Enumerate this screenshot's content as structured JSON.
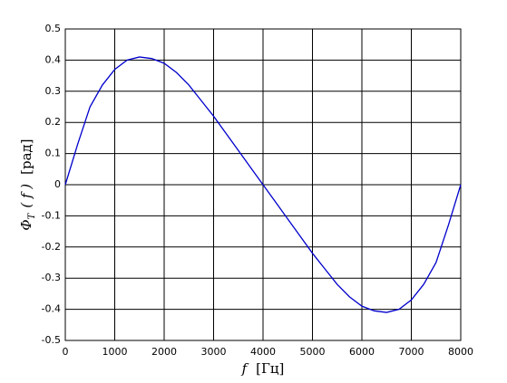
{
  "chart_data": {
    "type": "line",
    "xlabel": [
      "f",
      "[Гц]"
    ],
    "ylabel": [
      "Φ",
      "T",
      "( f )",
      "[рад]"
    ],
    "x": [
      0,
      250,
      500,
      750,
      1000,
      1250,
      1500,
      1750,
      2000,
      2250,
      2500,
      2750,
      3000,
      3250,
      3500,
      3750,
      4000,
      4250,
      4500,
      4750,
      5000,
      5250,
      5500,
      5750,
      6000,
      6250,
      6500,
      6750,
      7000,
      7250,
      7500,
      7750,
      8000
    ],
    "series": [
      {
        "color": "#0000cc",
        "values": [
          0,
          0.13,
          0.25,
          0.32,
          0.37,
          0.4,
          0.41,
          0.405,
          0.39,
          0.36,
          0.32,
          0.27,
          0.22,
          0.165,
          0.11,
          0.055,
          0,
          -0.055,
          -0.11,
          -0.165,
          -0.22,
          -0.27,
          -0.32,
          -0.36,
          -0.39,
          -0.405,
          -0.41,
          -0.4,
          -0.37,
          -0.32,
          -0.25,
          -0.13,
          0
        ]
      }
    ],
    "xlim": [
      0,
      8000
    ],
    "xticks": [
      0,
      1000,
      2000,
      3000,
      4000,
      5000,
      6000,
      7000,
      8000
    ],
    "ylim": [
      -0.5,
      0.5
    ],
    "yticks": [
      -0.5,
      -0.4,
      -0.3,
      -0.2,
      -0.1,
      0,
      0.1,
      0.2,
      0.3,
      0.4,
      0.5
    ],
    "grid": true
  }
}
